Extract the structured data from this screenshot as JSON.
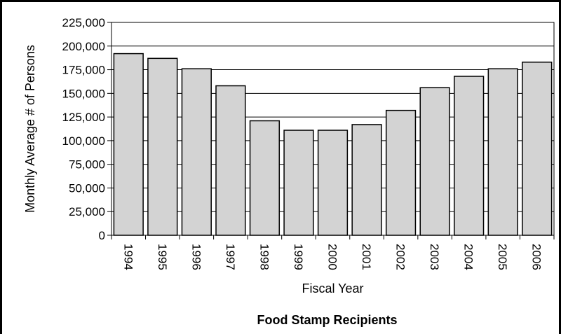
{
  "chart_data": {
    "type": "bar",
    "title": "Food Stamp Recipients",
    "xlabel": "Fiscal Year",
    "ylabel": "Monthly Average # of Persons",
    "categories": [
      "1994",
      "1995",
      "1996",
      "1997",
      "1998",
      "1999",
      "2000",
      "2001",
      "2002",
      "2003",
      "2004",
      "2005",
      "2006"
    ],
    "values": [
      192000,
      187000,
      176000,
      158000,
      121000,
      111000,
      111000,
      117000,
      132000,
      156000,
      168000,
      176000,
      183000
    ],
    "ylim": [
      0,
      225000
    ],
    "yticks": [
      0,
      25000,
      50000,
      75000,
      100000,
      125000,
      150000,
      175000,
      200000,
      225000
    ],
    "ytick_labels": [
      "0",
      "25,000",
      "50,000",
      "75,000",
      "100,000",
      "125,000",
      "150,000",
      "175,000",
      "200,000",
      "225,000"
    ],
    "grid": "horizontal-major",
    "bar_color": "#d3d3d3"
  }
}
